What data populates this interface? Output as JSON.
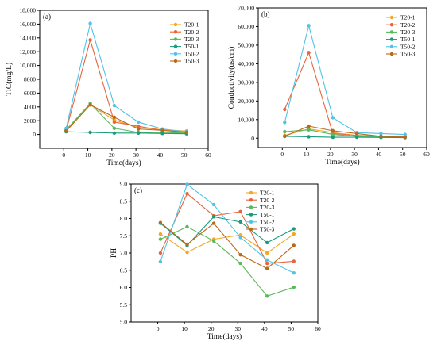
{
  "chart_data": [
    {
      "type": "line",
      "panel_label": "(a)",
      "xlabel": "Time(days)",
      "ylabel": "TIC(mg/L)",
      "xlim": [
        -10,
        60
      ],
      "ylim": [
        -2000,
        18000
      ],
      "xticks": [
        0,
        10,
        20,
        30,
        40,
        50,
        60
      ],
      "yticks": [
        0,
        2000,
        4000,
        6000,
        8000,
        10000,
        12000,
        14000,
        16000,
        18000
      ],
      "ytick_labels": [
        "0",
        "2000",
        "4000",
        "6000",
        "8000",
        "10,000",
        "12,000",
        "14,000",
        "16,000",
        "18,000"
      ],
      "legend_position": "top-right",
      "x": [
        1,
        11,
        21,
        31,
        41,
        51
      ],
      "series": [
        {
          "name": "T20-1",
          "color": "#f5a623",
          "values": [
            500,
            4300,
            2100,
            1000,
            700,
            500
          ]
        },
        {
          "name": "T20-2",
          "color": "#e8643c",
          "values": [
            600,
            13700,
            1800,
            1200,
            600,
            400
          ]
        },
        {
          "name": "T20-3",
          "color": "#5cb85c",
          "values": [
            700,
            4500,
            900,
            300,
            300,
            200
          ]
        },
        {
          "name": "T50-1",
          "color": "#1a9b7a",
          "values": [
            400,
            300,
            200,
            200,
            150,
            100
          ]
        },
        {
          "name": "T50-2",
          "color": "#4fc3e8",
          "values": [
            900,
            16100,
            4200,
            1800,
            800,
            400
          ]
        },
        {
          "name": "T50-3",
          "color": "#b8691a",
          "values": [
            500,
            4300,
            2500,
            800,
            600,
            300
          ]
        }
      ]
    },
    {
      "type": "line",
      "panel_label": "(b)",
      "xlabel": "Time(days)",
      "ylabel": "Conductivity(us/cm)",
      "xlim": [
        -10,
        60
      ],
      "ylim": [
        -5000,
        70000
      ],
      "xticks": [
        0,
        10,
        20,
        30,
        40,
        50,
        60
      ],
      "yticks": [
        0,
        10000,
        20000,
        30000,
        40000,
        50000,
        60000,
        70000
      ],
      "ytick_labels": [
        "0",
        "10,000",
        "20,000",
        "30,000",
        "40,000",
        "50,000",
        "60,000",
        "70,000"
      ],
      "legend_position": "top-right",
      "x": [
        1,
        11,
        21,
        31,
        41,
        51
      ],
      "series": [
        {
          "name": "T20-1",
          "color": "#f5a623",
          "values": [
            1500,
            5000,
            3000,
            1500,
            1000,
            800
          ]
        },
        {
          "name": "T20-2",
          "color": "#e8643c",
          "values": [
            15500,
            46000,
            2500,
            1500,
            1000,
            800
          ]
        },
        {
          "name": "T20-3",
          "color": "#5cb85c",
          "values": [
            3500,
            4500,
            2000,
            1000,
            800,
            500
          ]
        },
        {
          "name": "T50-1",
          "color": "#1a9b7a",
          "values": [
            1000,
            800,
            500,
            500,
            400,
            300
          ]
        },
        {
          "name": "T50-2",
          "color": "#4fc3e8",
          "values": [
            8500,
            60500,
            11000,
            3000,
            2500,
            2000
          ]
        },
        {
          "name": "T50-3",
          "color": "#b8691a",
          "values": [
            1000,
            6500,
            4000,
            2500,
            1000,
            500
          ]
        }
      ]
    },
    {
      "type": "line",
      "panel_label": "(c)",
      "xlabel": "Time(days)",
      "ylabel": "PH",
      "xlim": [
        -10,
        60
      ],
      "ylim": [
        5.0,
        9.0
      ],
      "xticks": [
        0,
        10,
        20,
        30,
        40,
        50,
        60
      ],
      "yticks": [
        5.0,
        5.5,
        6.0,
        6.5,
        7.0,
        7.5,
        8.0,
        8.5,
        9.0
      ],
      "ytick_labels": [
        "5.0",
        "5.5",
        "6.0",
        "6.5",
        "7.0",
        "7.5",
        "8.0",
        "8.5",
        "9.0"
      ],
      "legend_position": "top-right",
      "x": [
        1,
        11,
        21,
        31,
        41,
        51
      ],
      "series": [
        {
          "name": "T20-1",
          "color": "#f5a623",
          "values": [
            7.55,
            7.02,
            7.4,
            7.52,
            7.0,
            7.55
          ]
        },
        {
          "name": "T20-2",
          "color": "#e8643c",
          "values": [
            7.0,
            8.72,
            8.08,
            8.2,
            6.7,
            6.76
          ]
        },
        {
          "name": "T20-3",
          "color": "#5cb85c",
          "values": [
            7.4,
            7.76,
            7.35,
            6.7,
            5.75,
            6.01
          ]
        },
        {
          "name": "T50-1",
          "color": "#1a9b7a",
          "values": [
            7.86,
            7.22,
            8.05,
            7.9,
            7.3,
            7.7
          ]
        },
        {
          "name": "T50-2",
          "color": "#4fc3e8",
          "values": [
            6.75,
            8.99,
            8.4,
            7.45,
            6.8,
            6.42
          ]
        },
        {
          "name": "T50-3",
          "color": "#b8691a",
          "values": [
            7.88,
            7.25,
            7.86,
            6.95,
            6.55,
            7.22
          ]
        }
      ]
    }
  ]
}
